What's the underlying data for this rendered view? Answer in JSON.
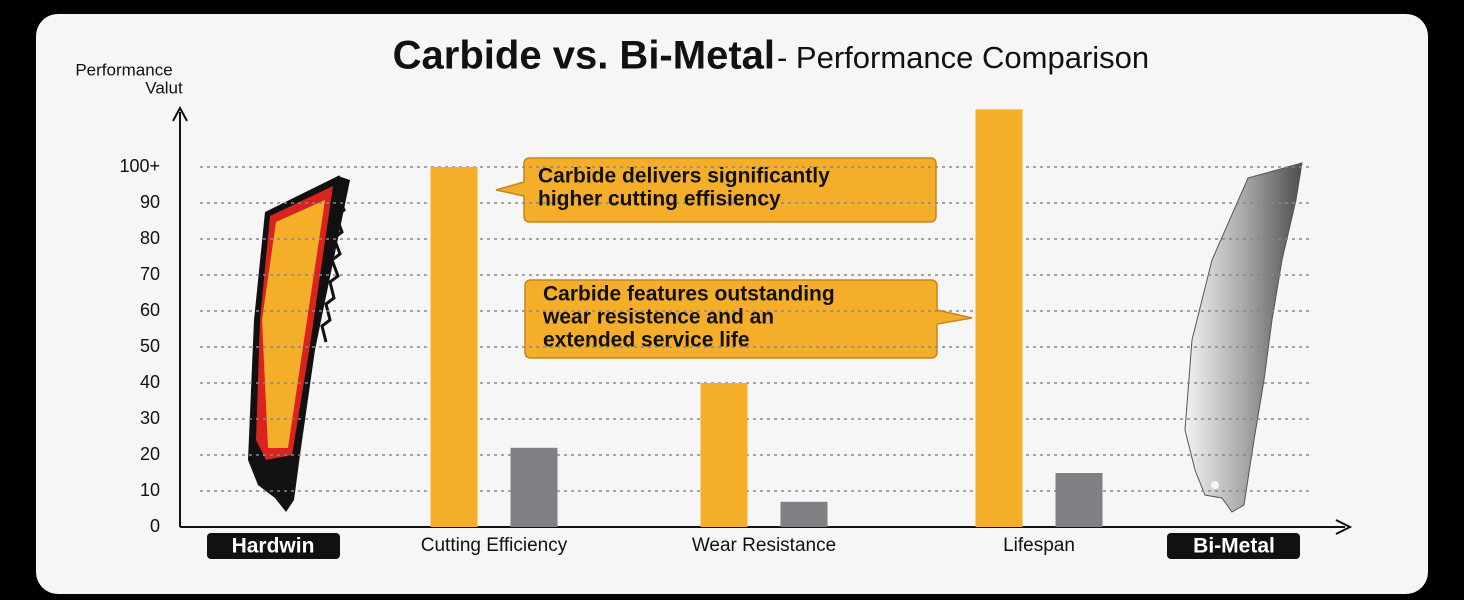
{
  "chart_data": {
    "type": "bar",
    "title": "Carbide vs. Bi-Metal",
    "subtitle": "- Performance Comparison",
    "ylabel": [
      "Performance",
      "Valut"
    ],
    "categories": [
      "Cutting Efficiency",
      "Wear Resistance",
      "Lifespan"
    ],
    "series": [
      {
        "name": "Hardwin",
        "color": "#f4ae2a",
        "values": [
          100,
          40,
          116
        ]
      },
      {
        "name": "Bi-Metal",
        "color": "#808084",
        "values": [
          22,
          7,
          15
        ]
      }
    ],
    "ylim": [
      0,
      118
    ],
    "yticks": [
      0,
      10,
      20,
      30,
      40,
      50,
      60,
      70,
      80,
      90,
      {
        "value": 100,
        "label": "100+"
      }
    ],
    "grid": true,
    "annotations": [
      {
        "lines": [
          "Carbide delivers significantly",
          "higher cutting effisiency"
        ]
      },
      {
        "lines": [
          "Carbide features outstanding",
          "wear resistence and an",
          "extended service life"
        ]
      }
    ]
  }
}
